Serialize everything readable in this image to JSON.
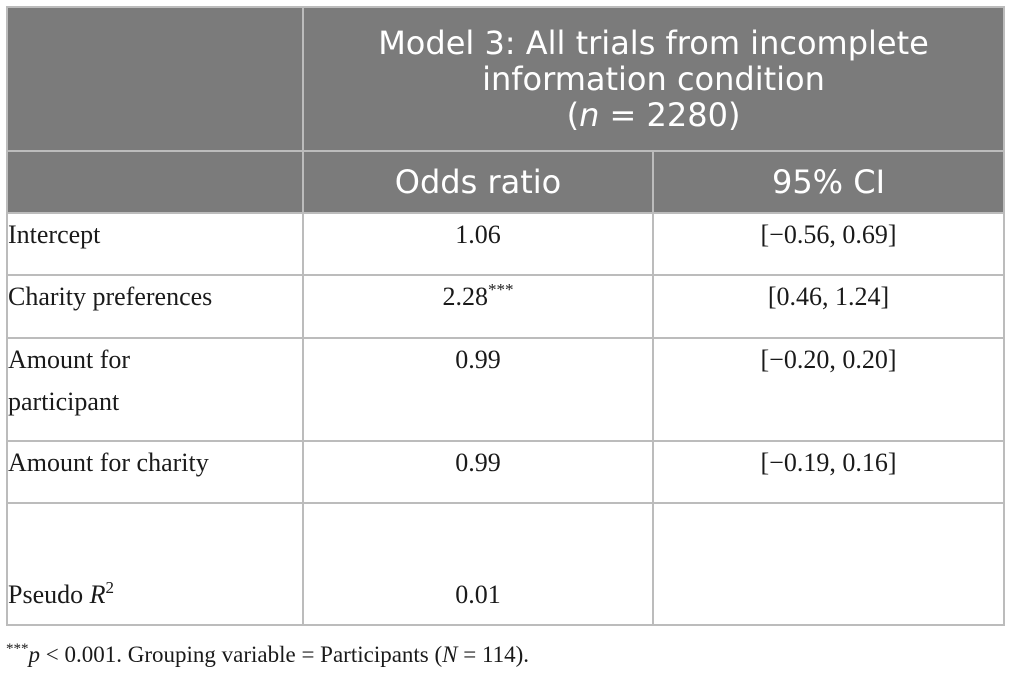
{
  "header": {
    "model_title_line1": "Model 3: All trials from incomplete",
    "model_title_line2": "information condition",
    "n_open": "(",
    "n_symbol": "n",
    "n_value": " = 2280)",
    "col_odds_ratio": "Odds ratio",
    "col_ci": "95% CI"
  },
  "rows": [
    {
      "label": "Intercept",
      "odds": "1.06",
      "odds_sig": "",
      "ci": "[−0.56, 0.69]"
    },
    {
      "label": "Charity preferences",
      "odds": "2.28",
      "odds_sig": "***",
      "ci": "[0.46, 1.24]"
    },
    {
      "label_line1": "Amount for",
      "label_line2": "participant",
      "odds": "0.99",
      "odds_sig": "",
      "ci": "[−0.20, 0.20]"
    },
    {
      "label": "Amount for charity",
      "odds": "0.99",
      "odds_sig": "",
      "ci": "[−0.19, 0.16]"
    },
    {
      "label_prefix": "Pseudo ",
      "label_var": "R",
      "label_sup": "2",
      "odds": "0.01",
      "ci": ""
    }
  ],
  "footnote": {
    "sig_marker": "***",
    "p_symbol": "p",
    "p_text": " < 0.001. Grouping variable = Participants (",
    "n_symbol": "N",
    "n_text": " = 114)."
  }
}
